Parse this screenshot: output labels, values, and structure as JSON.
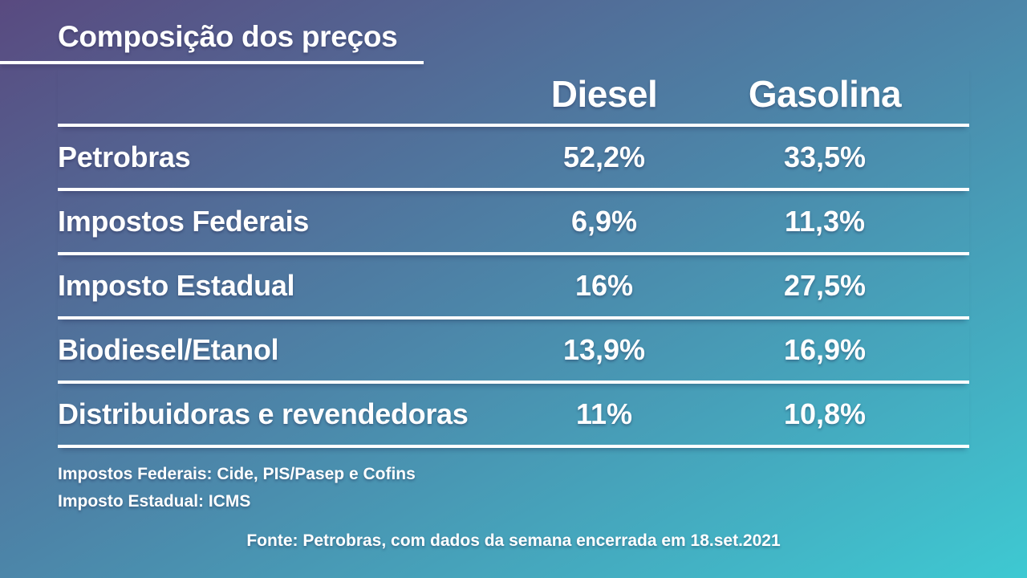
{
  "title": "Composição dos preços",
  "table": {
    "columns": [
      "Diesel",
      "Gasolina"
    ],
    "rows": [
      {
        "label": "Petrobras",
        "diesel": "52,2%",
        "gasolina": "33,5%"
      },
      {
        "label": "Impostos Federais",
        "diesel": "6,9%",
        "gasolina": "11,3%"
      },
      {
        "label": "Imposto Estadual",
        "diesel": "16%",
        "gasolina": "27,5%"
      },
      {
        "label": "Biodiesel/Etanol",
        "diesel": "13,9%",
        "gasolina": "16,9%"
      },
      {
        "label": "Distribuidoras e revendedoras",
        "diesel": "11%",
        "gasolina": "10,8%"
      }
    ]
  },
  "footnotes": [
    "Impostos Federais: Cide, PIS/Pasep e Cofins",
    "Imposto Estadual: ICMS"
  ],
  "source": "Fonte: Petrobras, com dados da semana encerrada em 18.set.2021",
  "colors": {
    "gradient_start": "#594a80",
    "gradient_mid": "#4c86a9",
    "gradient_end": "#3ec9d2",
    "text": "#ffffff",
    "rule": "#ffffff"
  },
  "chart_data": {
    "type": "table",
    "title": "Composição dos preços",
    "categories": [
      "Petrobras",
      "Impostos Federais",
      "Imposto Estadual",
      "Biodiesel/Etanol",
      "Distribuidoras e revendedoras"
    ],
    "series": [
      {
        "name": "Diesel",
        "values": [
          52.2,
          6.9,
          16,
          13.9,
          11
        ]
      },
      {
        "name": "Gasolina",
        "values": [
          33.5,
          11.3,
          27.5,
          16.9,
          10.8
        ]
      }
    ],
    "value_unit": "%",
    "decimal_separator": ",",
    "notes": [
      "Impostos Federais: Cide, PIS/Pasep e Cofins",
      "Imposto Estadual: ICMS"
    ],
    "source": "Fonte: Petrobras, com dados da semana encerrada em 18.set.2021"
  }
}
